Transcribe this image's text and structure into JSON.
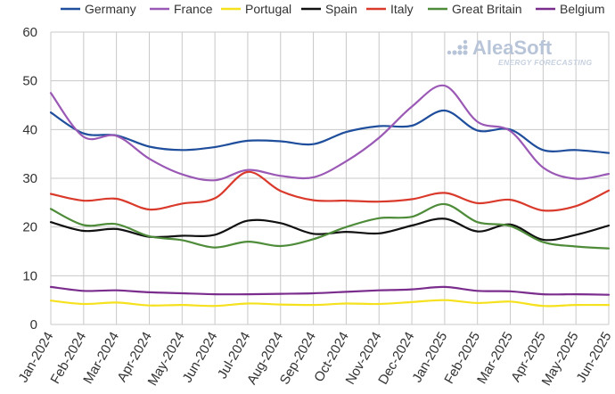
{
  "chart_data": {
    "type": "line",
    "title": "",
    "xlabel": "",
    "ylabel": "",
    "ylim": [
      0,
      60
    ],
    "yticks": [
      0,
      10,
      20,
      30,
      40,
      50,
      60
    ],
    "grid": true,
    "legend_position": "top",
    "categories": [
      "Jan-2024",
      "Feb-2024",
      "Mar-2024",
      "Apr-2024",
      "May-2024",
      "Jun-2024",
      "Jul-2024",
      "Aug-2024",
      "Sep-2024",
      "Oct-2024",
      "Nov-2024",
      "Dec-2024",
      "Jan-2025",
      "Feb-2025",
      "Mar-2025",
      "Apr-2025",
      "May-2025",
      "Jun-2025"
    ],
    "series": [
      {
        "name": "Germany",
        "color": "#1f4e9c",
        "values": [
          43.5,
          39.2,
          38.8,
          36.5,
          35.8,
          36.4,
          37.7,
          37.6,
          37.0,
          39.5,
          40.7,
          40.8,
          43.9,
          39.8,
          40.0,
          35.8,
          35.8,
          35.2
        ]
      },
      {
        "name": "France",
        "color": "#9b59b6",
        "values": [
          47.5,
          38.5,
          38.7,
          34.0,
          30.8,
          29.6,
          31.7,
          30.5,
          30.2,
          33.5,
          38.3,
          44.7,
          49.0,
          41.6,
          39.7,
          32.2,
          29.9,
          30.9
        ]
      },
      {
        "name": "Portugal",
        "color": "#f5e11e",
        "values": [
          4.9,
          4.2,
          4.5,
          3.9,
          4.0,
          3.8,
          4.3,
          4.1,
          4.0,
          4.3,
          4.2,
          4.6,
          5.0,
          4.4,
          4.7,
          3.8,
          4.0,
          4.0
        ]
      },
      {
        "name": "Spain",
        "color": "#111111",
        "values": [
          21.0,
          19.2,
          19.6,
          18.0,
          18.2,
          18.4,
          21.3,
          20.8,
          18.6,
          19.0,
          18.7,
          20.3,
          21.7,
          19.1,
          20.5,
          17.4,
          18.4,
          20.3
        ]
      },
      {
        "name": "Italy",
        "color": "#d93a2b",
        "values": [
          26.8,
          25.4,
          25.8,
          23.6,
          24.8,
          25.9,
          31.3,
          27.4,
          25.5,
          25.4,
          25.2,
          25.7,
          27.0,
          24.9,
          25.6,
          23.4,
          24.3,
          27.5
        ]
      },
      {
        "name": "Great Britain",
        "color": "#4e8c3a",
        "values": [
          23.7,
          20.4,
          20.6,
          18.1,
          17.3,
          15.8,
          17.0,
          16.1,
          17.5,
          20.0,
          21.8,
          22.1,
          24.7,
          21.0,
          20.2,
          16.9,
          16.0,
          15.6
        ]
      },
      {
        "name": "Belgium",
        "color": "#7b2d8e",
        "values": [
          7.7,
          6.9,
          7.0,
          6.6,
          6.4,
          6.2,
          6.2,
          6.3,
          6.4,
          6.7,
          7.0,
          7.2,
          7.7,
          6.9,
          6.8,
          6.2,
          6.2,
          6.1
        ]
      }
    ]
  },
  "watermark": {
    "brand": "AleaSoft",
    "tagline": "ENERGY FORECASTING",
    "logo_icon": "dots-grid-icon"
  }
}
